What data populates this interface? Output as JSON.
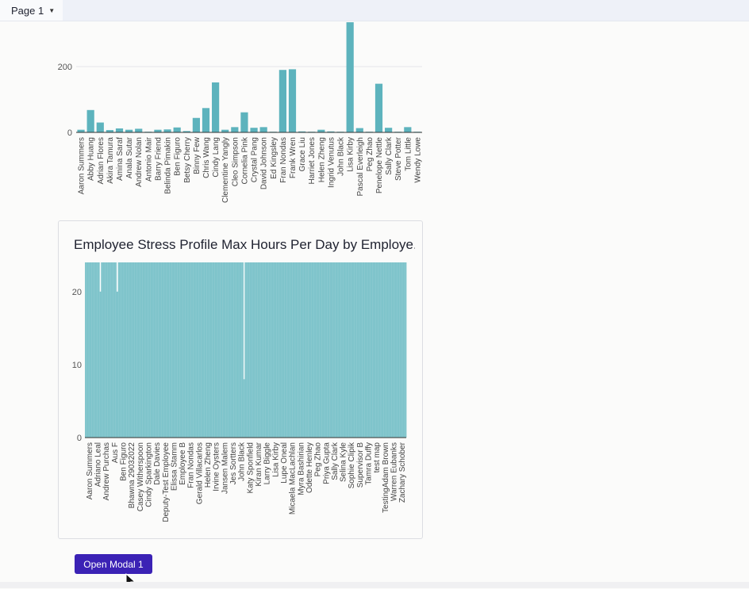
{
  "topbar": {
    "page_label": "Page 1"
  },
  "modal_button": {
    "label": "Open Modal 1"
  },
  "chart_data": [
    {
      "type": "bar",
      "title": "",
      "xlabel": "",
      "ylabel": "",
      "ylim": [
        0,
        340
      ],
      "yticks": [
        0,
        200
      ],
      "categories": [
        "Aaron Summers",
        "Abby Huang",
        "Adrian Flores",
        "Akira Tamura",
        "Amina Saraf",
        "Anala Sutar",
        "Andrew Nolan",
        "Antonio Mair",
        "Barry Friend",
        "Belinda Pimakin",
        "Ben Figuro",
        "Betsy Cherry",
        "Binny Few",
        "Chris Wang",
        "Cindy Lang",
        "Clementine Yangly",
        "Cleo Simpson",
        "Cornelia Pink",
        "Crystal Pang",
        "David Johnson",
        "Ed Kingsley",
        "Fran Nondas",
        "Frank Wren",
        "Grace Liu",
        "Harriet Jones",
        "Helen Zheng",
        "Ingrid Venutus",
        "John Black",
        "Lisa Kirby",
        "Pascal Everleigh",
        "Peg Zhao",
        "Penelope Nettle",
        "Sally Clark",
        "Steve Potter",
        "Tom Little",
        "Wendy Lowe"
      ],
      "values": [
        8,
        68,
        30,
        7,
        12,
        8,
        11,
        2,
        8,
        9,
        15,
        4,
        44,
        74,
        152,
        8,
        16,
        61,
        14,
        16,
        2,
        190,
        192,
        3,
        2,
        8,
        3,
        2,
        335,
        13,
        2,
        148,
        14,
        2,
        16,
        2
      ],
      "color": "#5db3bd"
    },
    {
      "type": "bar",
      "title": "Employee Stress Profile Max Hours Per Day by Employe...",
      "xlabel": "",
      "ylabel": "",
      "ylim": [
        0,
        24
      ],
      "yticks": [
        0,
        10,
        20
      ],
      "categories": [
        "Aaron Summers",
        "Adriano Leal",
        "Andrew Purchas",
        "Aus F",
        "Ben Figuro",
        "Bhawna 29032022",
        "Casey Witherspoon",
        "Cindy Sparkington",
        "Dale Davies",
        "Deputy-Test Employee",
        "Elissa Stamm",
        "Employee B",
        "Fran Nondas",
        "Gerald Villacarlos",
        "Helen Zheng",
        "Irvine Oysters",
        "Jansen Malem",
        "Jes Sortters",
        "John Black",
        "Katy Sponfield",
        "Kiran Kumar",
        "Larry Biggle",
        "Lisa Kirby",
        "Lupe Oneal",
        "Micaela MacLachlan",
        "Myra Bashirian",
        "Odette Henley",
        "Peg Zhao",
        "Priya Gupta",
        "Sally Clark",
        "Selina Kyle",
        "Sophie Clipik",
        "Supervisor B",
        "Tamra Duffy",
        "test map",
        "TestingAdam Brown",
        "Warren Eubanks",
        "Zachary Schober"
      ],
      "baseline_value": 24,
      "dips": [
        {
          "category_index": 1,
          "value": 20
        },
        {
          "category_index": 3,
          "value": 20
        },
        {
          "category_index": 18,
          "value": 8
        }
      ],
      "color": "#7fc4cb"
    }
  ]
}
